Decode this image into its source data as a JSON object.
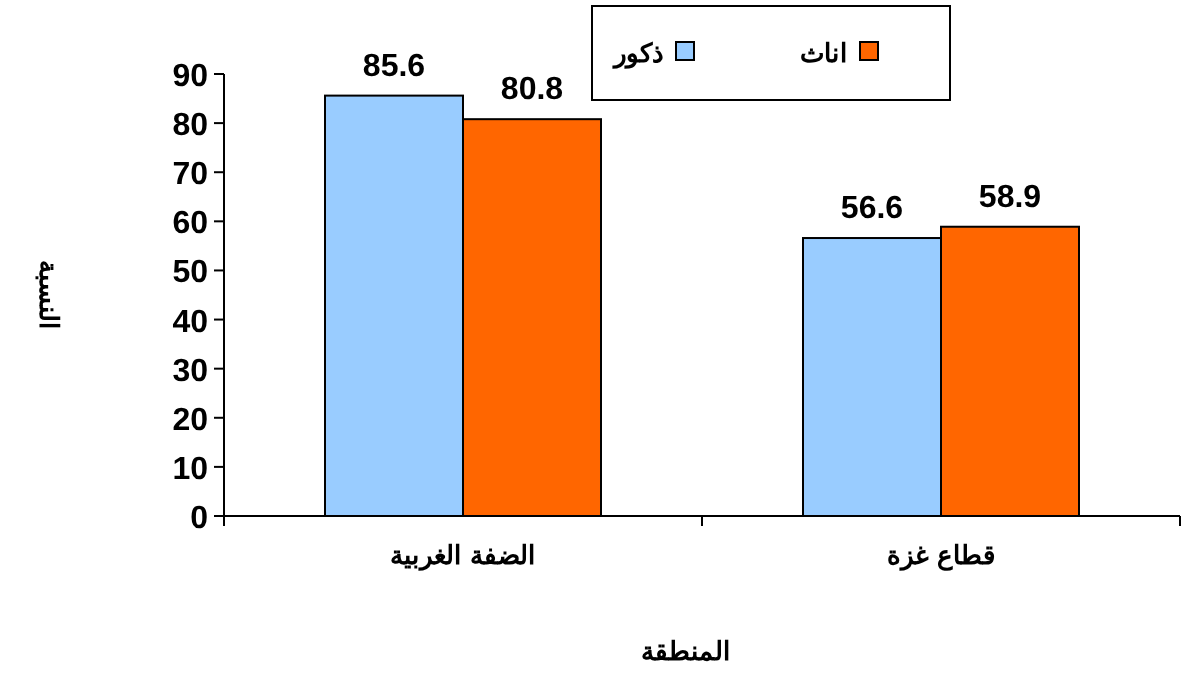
{
  "chart_data": {
    "type": "bar",
    "xlabel": "المنطقة",
    "ylabel": "النسبة",
    "categories": [
      "الضفة الغربية",
      "قطاع غزة"
    ],
    "series": [
      {
        "name": "ذكور",
        "color": "#99ccff",
        "values": [
          85.6,
          56.6
        ]
      },
      {
        "name": "اناث",
        "color": "#ff6600",
        "values": [
          80.8,
          58.9
        ]
      }
    ],
    "ylim": [
      0,
      90
    ],
    "yticks": [
      0,
      10,
      20,
      30,
      40,
      50,
      60,
      70,
      80,
      90
    ],
    "data_labels": true,
    "legend": "top",
    "grid": false
  }
}
